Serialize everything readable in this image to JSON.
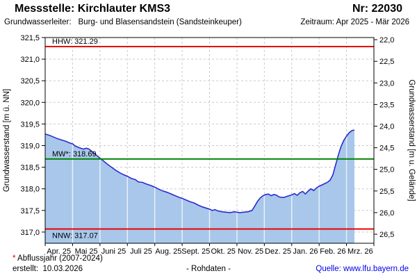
{
  "header": {
    "title": "Messstelle: Kirchlauter KMS3",
    "station_no": "Nr: 22030",
    "aquifer_label": "Grundwasserleiter:",
    "aquifer_value": "Burg- und Blasensandstein (Sandsteinkeuper)",
    "period": "Zeitraum: Apr 2025 - Mär 2026"
  },
  "footer": {
    "footnote_marker": "*",
    "footnote_text": "Abflussjahr (2007-2024)",
    "created": "erstellt:  10.03.2026",
    "data_type": "- Rohdaten -",
    "source": "Quelle: www.lfu.bayern.de"
  },
  "colors": {
    "grid": "#c9c9c9",
    "fill_month_line": "rgba(255,255,255,0.72)",
    "border": "#000000",
    "hhw_nnw_red": "#e80000",
    "mw_green": "#008200",
    "curve_blue": "#2b2bcd",
    "area_fill": "#a8c7ea",
    "link_blue": "#0000ee",
    "footnote_red": "#dd0000"
  },
  "chart_data": {
    "type": "area",
    "title": "",
    "x_tick_labels": [
      "Apr. 25",
      "Mai 25",
      "Juni 25",
      "Juli 25",
      "Aug. 25",
      "Sept. 25",
      "Okt. 25",
      "Nov. 25",
      "Dez. 25",
      "Jan. 26",
      "Feb. 26",
      "Mrz. 26"
    ],
    "x_range_months": [
      0,
      12
    ],
    "grid": true,
    "y_left_axis": {
      "label": "Grundwasserstand [m ü. NN]",
      "tick_values": [
        321.5,
        321.0,
        320.5,
        320.0,
        319.5,
        319.0,
        318.5,
        318.0,
        317.5,
        317.0
      ],
      "tick_labels": [
        "321,5",
        "321,0",
        "320,5",
        "320,0",
        "319,5",
        "319,0",
        "318,5",
        "318,0",
        "317,5",
        "317,0"
      ],
      "range": [
        316.74,
        321.5
      ]
    },
    "y_right_axis": {
      "label": "Grundwasserstand [m u. Gelände]",
      "tick_values": [
        22.0,
        22.5,
        23.0,
        23.5,
        24.0,
        24.5,
        25.0,
        25.5,
        26.0,
        26.5
      ],
      "tick_labels": [
        "22,0",
        "22,5",
        "23,0",
        "23,5",
        "24,0",
        "24,5",
        "25,0",
        "25,5",
        "26,0",
        "26,5"
      ],
      "ground_offset": 343.45
    },
    "reference_lines": [
      {
        "id": "hhw",
        "label": "HHW: 321.29",
        "value": 321.29,
        "color": "#e80000",
        "label_pos": "above"
      },
      {
        "id": "mw",
        "label": "MW*: 318.69",
        "value": 318.69,
        "color": "#008200",
        "label_pos": "above"
      },
      {
        "id": "nnw",
        "label": "NNW: 317.07",
        "value": 317.07,
        "color": "#e80000",
        "label_pos": "below"
      }
    ],
    "series": [
      {
        "name": "Grundwasserstand (Rohdaten)",
        "line_color": "#2b2bcd",
        "fill_color": "#a8c7ea",
        "points": [
          [
            0,
            319.27
          ],
          [
            0.15,
            319.24
          ],
          [
            0.3,
            319.2
          ],
          [
            0.45,
            319.16
          ],
          [
            0.6,
            319.13
          ],
          [
            0.75,
            319.1
          ],
          [
            0.9,
            319.06
          ],
          [
            1,
            319.04
          ],
          [
            1.1,
            318.99
          ],
          [
            1.25,
            318.95
          ],
          [
            1.4,
            318.92
          ],
          [
            1.5,
            318.94
          ],
          [
            1.6,
            318.92
          ],
          [
            1.7,
            318.87
          ],
          [
            1.85,
            318.79
          ],
          [
            2,
            318.71
          ],
          [
            2.1,
            318.66
          ],
          [
            2.25,
            318.58
          ],
          [
            2.4,
            318.51
          ],
          [
            2.55,
            318.44
          ],
          [
            2.7,
            318.38
          ],
          [
            2.85,
            318.33
          ],
          [
            3,
            318.29
          ],
          [
            3.15,
            318.24
          ],
          [
            3.3,
            318.21
          ],
          [
            3.4,
            318.16
          ],
          [
            3.55,
            318.15
          ],
          [
            3.7,
            318.11
          ],
          [
            3.85,
            318.08
          ],
          [
            4,
            318.04
          ],
          [
            4.15,
            317.99
          ],
          [
            4.3,
            317.95
          ],
          [
            4.45,
            317.92
          ],
          [
            4.6,
            317.88
          ],
          [
            4.75,
            317.84
          ],
          [
            4.9,
            317.8
          ],
          [
            5,
            317.78
          ],
          [
            5.15,
            317.74
          ],
          [
            5.3,
            317.7
          ],
          [
            5.45,
            317.67
          ],
          [
            5.6,
            317.62
          ],
          [
            5.75,
            317.58
          ],
          [
            5.9,
            317.55
          ],
          [
            6,
            317.53
          ],
          [
            6.1,
            317.5
          ],
          [
            6.2,
            317.52
          ],
          [
            6.3,
            317.49
          ],
          [
            6.45,
            317.47
          ],
          [
            6.6,
            317.46
          ],
          [
            6.75,
            317.45
          ],
          [
            6.9,
            317.47
          ],
          [
            7,
            317.46
          ],
          [
            7.1,
            317.45
          ],
          [
            7.25,
            317.46
          ],
          [
            7.4,
            317.47
          ],
          [
            7.55,
            317.5
          ],
          [
            7.65,
            317.6
          ],
          [
            7.75,
            317.71
          ],
          [
            7.85,
            317.79
          ],
          [
            7.95,
            317.84
          ],
          [
            8.05,
            317.87
          ],
          [
            8.15,
            317.88
          ],
          [
            8.25,
            317.84
          ],
          [
            8.35,
            317.87
          ],
          [
            8.45,
            317.85
          ],
          [
            8.55,
            317.81
          ],
          [
            8.7,
            317.8
          ],
          [
            8.85,
            317.83
          ],
          [
            9,
            317.86
          ],
          [
            9.1,
            317.89
          ],
          [
            9.2,
            317.85
          ],
          [
            9.3,
            317.91
          ],
          [
            9.4,
            317.94
          ],
          [
            9.5,
            317.88
          ],
          [
            9.6,
            317.95
          ],
          [
            9.7,
            318.0
          ],
          [
            9.8,
            317.96
          ],
          [
            9.9,
            318.02
          ],
          [
            10,
            318.06
          ],
          [
            10.1,
            318.09
          ],
          [
            10.2,
            318.12
          ],
          [
            10.3,
            318.15
          ],
          [
            10.4,
            318.2
          ],
          [
            10.5,
            318.32
          ],
          [
            10.6,
            318.55
          ],
          [
            10.7,
            318.78
          ],
          [
            10.8,
            318.98
          ],
          [
            10.9,
            319.12
          ],
          [
            11,
            319.22
          ],
          [
            11.1,
            319.3
          ],
          [
            11.2,
            319.35
          ],
          [
            11.29,
            319.36
          ]
        ]
      }
    ]
  }
}
